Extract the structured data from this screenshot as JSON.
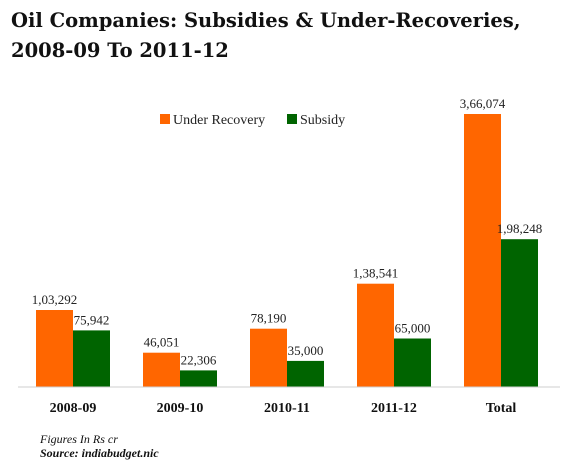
{
  "chart_data": {
    "type": "bar",
    "title": "Oil Companies: Subsidies & Under-Recoveries, 2008-09 To 2011-12",
    "categories": [
      "2008-09",
      "2009-10",
      "2010-11",
      "2011-12",
      "Total"
    ],
    "series": [
      {
        "name": "Under Recovery",
        "color": "#ff6600",
        "values": [
          103292,
          46051,
          78190,
          138541,
          366074
        ],
        "labels": [
          "1,03,292",
          "46,051",
          "78,190",
          "1,38,541",
          "3,66,074"
        ]
      },
      {
        "name": "Subsidy",
        "color": "#006400",
        "values": [
          75942,
          22306,
          35000,
          65000,
          198248
        ],
        "labels": [
          "75,942",
          "22,306",
          "35,000",
          "65,000",
          "1,98,248"
        ]
      }
    ],
    "ylim": [
      0,
      366074
    ],
    "grid": false,
    "legend_position": "top-center"
  },
  "footnote": {
    "units": "Figures In Rs cr",
    "source": "Source: indiabudget.nic"
  }
}
